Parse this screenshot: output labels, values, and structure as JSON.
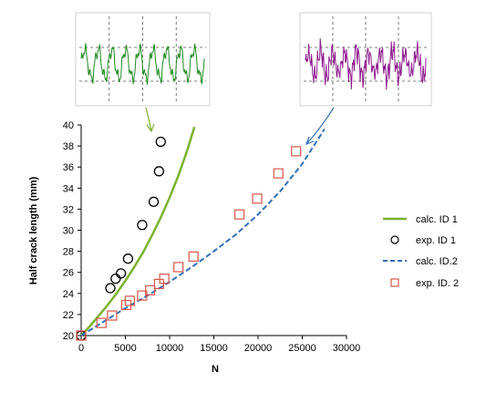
{
  "colors": {
    "calc1": "#7ab32e",
    "exp1": "#000000",
    "calc2": "#2f6fb6",
    "exp2": "#d9564a",
    "inset1_wave": "#1f8a1f",
    "inset2_wave": "#8e1b8e",
    "arrow1": "#7ab32e",
    "arrow2": "#2f6fb6"
  },
  "chart_data": {
    "type": "scatter",
    "xlabel": "N",
    "ylabel": "Half crack length (mm)",
    "xlim": [
      0,
      30000
    ],
    "ylim": [
      20,
      40
    ],
    "x_ticks": [
      0,
      5000,
      10000,
      15000,
      20000,
      25000,
      30000
    ],
    "y_ticks": [
      20,
      22,
      24,
      26,
      28,
      30,
      32,
      34,
      36,
      38,
      40
    ],
    "grid": false,
    "legend_position": "right",
    "series": [
      {
        "name": "calc. ID 1",
        "style": "solid-line",
        "x": [
          0,
          1000,
          2000,
          3000,
          4000,
          5000,
          6000,
          7000,
          8000,
          9000,
          10000,
          11000,
          12000,
          12800
        ],
        "y": [
          20.0,
          20.9,
          21.9,
          22.9,
          24.0,
          25.2,
          26.5,
          27.9,
          29.5,
          31.2,
          33.1,
          35.2,
          37.6,
          39.8
        ]
      },
      {
        "name": "exp. ID 1",
        "style": "circle-markers",
        "x": [
          0,
          3300,
          3900,
          4500,
          5300,
          6900,
          8200,
          8800,
          9000
        ],
        "y": [
          20.0,
          24.5,
          25.4,
          25.9,
          27.3,
          30.5,
          32.7,
          35.6,
          38.4
        ]
      },
      {
        "name": "calc. ID.2",
        "style": "dashed-line",
        "x": [
          0,
          2500,
          5000,
          7500,
          10000,
          12500,
          15000,
          17500,
          20000,
          22500,
          25000,
          27500
        ],
        "y": [
          20.0,
          21.3,
          22.6,
          23.8,
          25.1,
          26.5,
          28.0,
          29.6,
          31.5,
          33.7,
          36.3,
          39.6
        ]
      },
      {
        "name": "exp. ID. 2",
        "style": "square-markers",
        "x": [
          0,
          2300,
          3500,
          5100,
          5500,
          6900,
          7800,
          8800,
          9400,
          11000,
          12700,
          17900,
          19900,
          22300,
          24300
        ],
        "y": [
          20.0,
          21.2,
          21.9,
          22.9,
          23.3,
          23.8,
          24.3,
          24.9,
          25.4,
          26.5,
          27.5,
          31.5,
          33.0,
          35.4,
          37.5
        ]
      }
    ]
  },
  "insets": [
    {
      "series_ref": "exp. ID 1"
    },
    {
      "series_ref": "exp. ID. 2"
    }
  ]
}
